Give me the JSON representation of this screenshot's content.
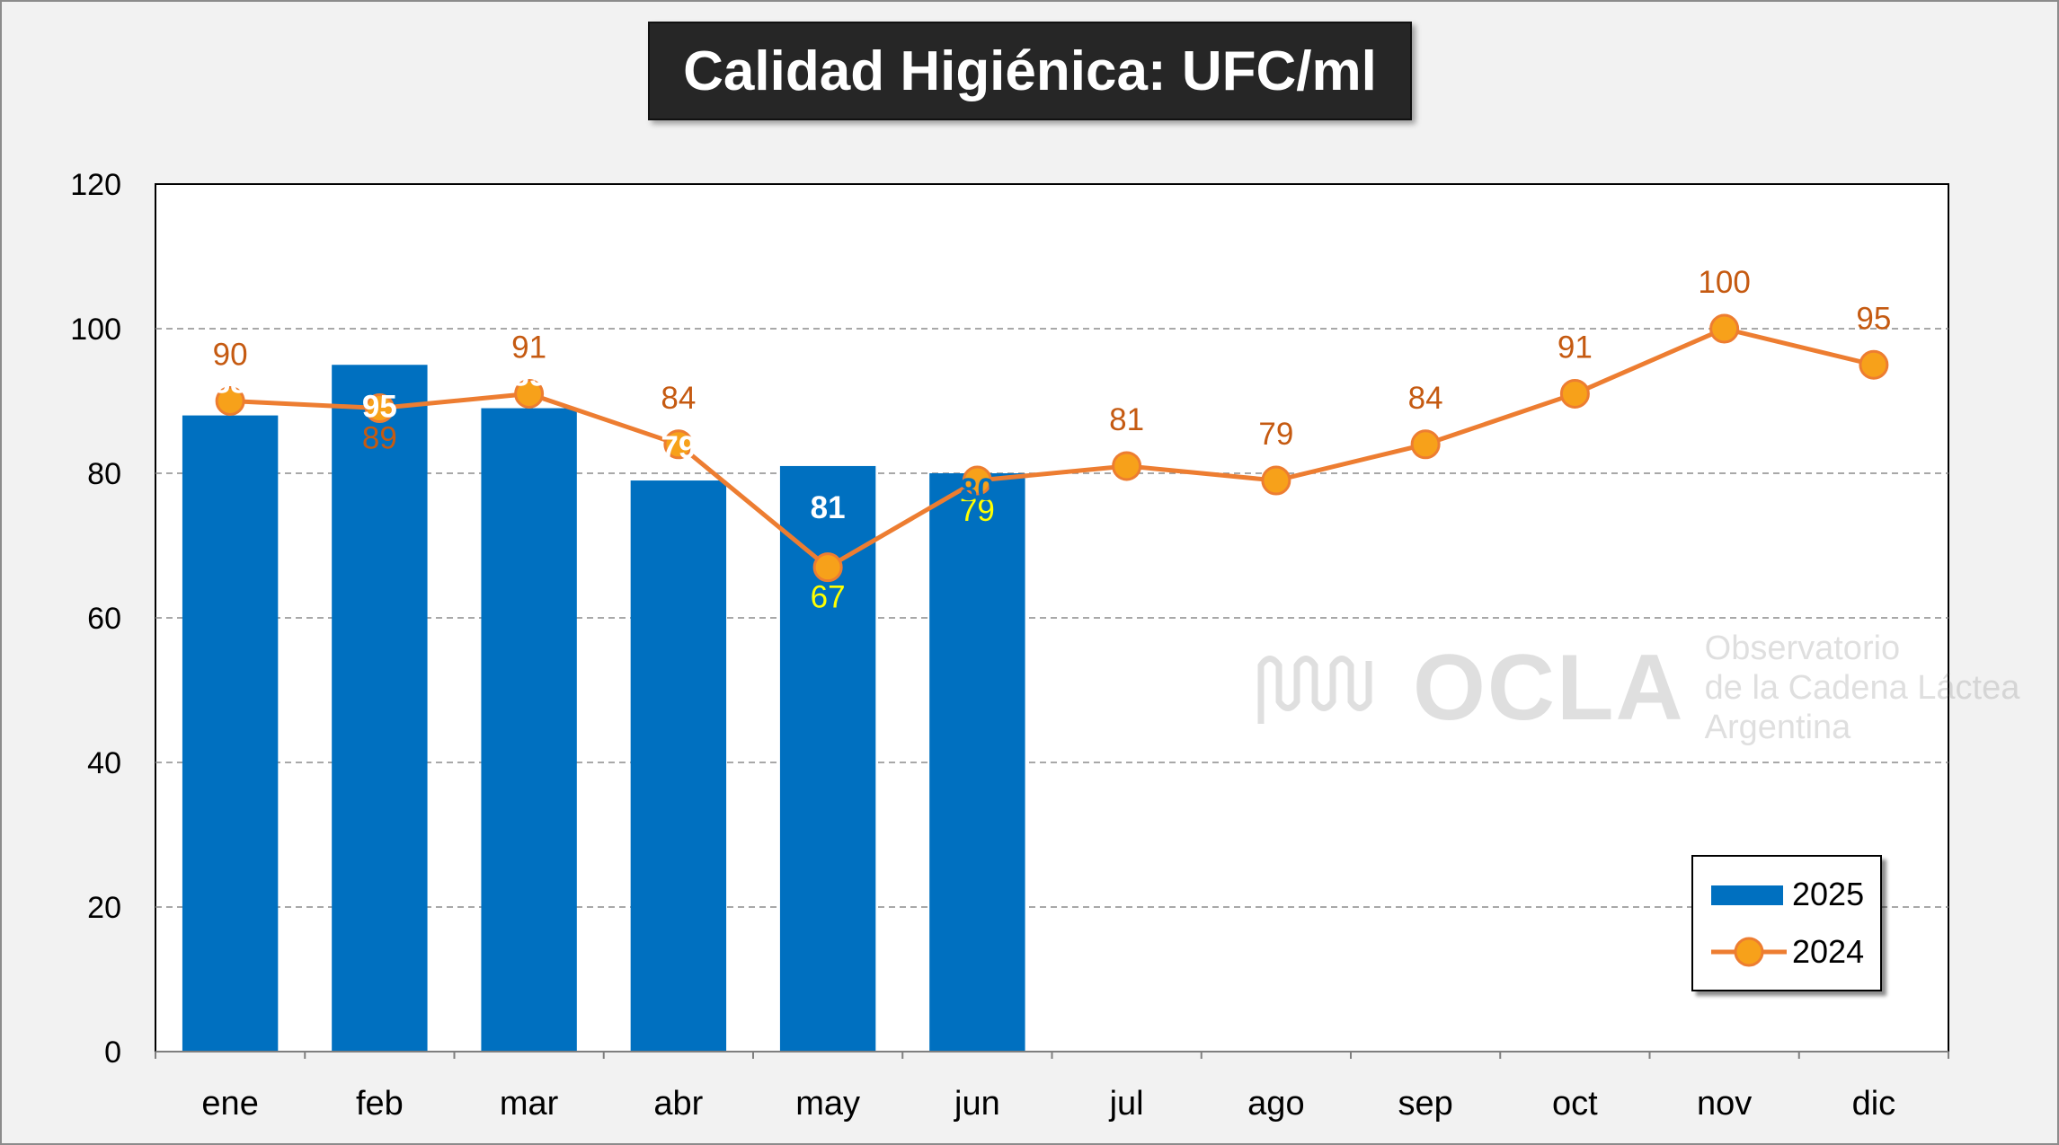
{
  "title": "Calidad Higiénica: UFC/ml",
  "watermark": {
    "logo": "OCLA",
    "line1": "Observatorio",
    "line2": "de la Cadena Láctea",
    "line3": "Argentina"
  },
  "chart_data": {
    "type": "bar",
    "title": "Calidad Higiénica: UFC/ml",
    "categories": [
      "ene",
      "feb",
      "mar",
      "abr",
      "may",
      "jun",
      "jul",
      "ago",
      "sep",
      "oct",
      "nov",
      "dic"
    ],
    "ylim": [
      0,
      120
    ],
    "yticks": [
      0,
      20,
      40,
      60,
      80,
      100,
      120
    ],
    "grid": true,
    "legend_position": "bottom-right",
    "series": [
      {
        "name": "2025",
        "type": "bar",
        "color": "#0070c0",
        "values": [
          88,
          95,
          89,
          79,
          81,
          80,
          null,
          null,
          null,
          null,
          null,
          null
        ],
        "label_colors": [
          "#ffffff",
          "#ffffff",
          "#ffffff",
          "#ffffff",
          "#ffffff",
          "#0070c0"
        ]
      },
      {
        "name": "2024",
        "type": "line",
        "color": "#ed7d31",
        "marker_color": "#f7a11a",
        "values": [
          90,
          89,
          91,
          84,
          67,
          79,
          81,
          79,
          84,
          91,
          100,
          95
        ],
        "label_colors": [
          "#c55a11",
          "#c55a11",
          "#c55a11",
          "#c55a11",
          "#ffff00",
          "#ffff00",
          "#c55a11",
          "#c55a11",
          "#c55a11",
          "#c55a11",
          "#c55a11",
          "#c55a11"
        ]
      }
    ]
  }
}
